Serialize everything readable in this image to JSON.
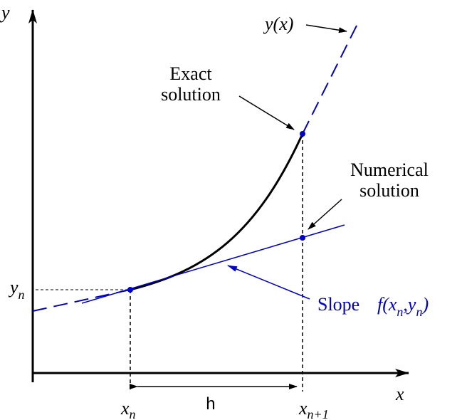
{
  "axes": {
    "y_label": "y",
    "x_label": "x"
  },
  "curve_label": "y(x)",
  "exact_label": {
    "line1": "Exact",
    "line2": "solution"
  },
  "numerical_label": {
    "line1": "Numerical",
    "line2": "solution"
  },
  "slope_label": {
    "word": "Slope",
    "parts": [
      "f(x",
      "n",
      ",y",
      "n",
      ")"
    ]
  },
  "yn_label": {
    "base": "y",
    "sub": "n"
  },
  "xn_label": {
    "base": "x",
    "sub": "n"
  },
  "xn1_label": {
    "base": "x",
    "sub": "n+1"
  },
  "step_label": "h"
}
